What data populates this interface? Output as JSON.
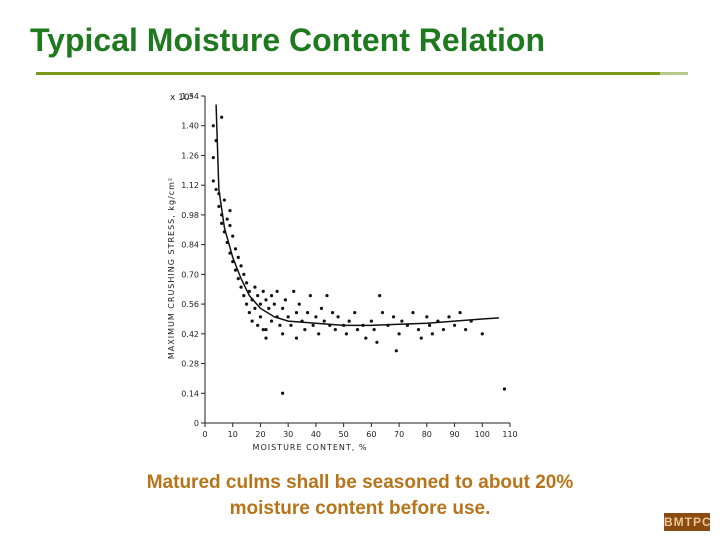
{
  "slide": {
    "title": "Typical Moisture Content Relation",
    "caption_line1": "Matured culms shall be seasoned to about 20%",
    "caption_line2": "moisture content before use.",
    "logo_text": "BMTPC",
    "colors": {
      "title": "#1f7a1f",
      "caption": "#b8741a",
      "rule": "#7a9a1a"
    }
  },
  "chart_data": {
    "type": "scatter",
    "xlabel": "MOISTURE CONTENT, %",
    "ylabel": "MAXIMUM CRUSHING STRESS, kg/cm²",
    "y_multiplier": "x 10³",
    "xlim": [
      0,
      110
    ],
    "ylim": [
      0,
      1.54
    ],
    "x_ticks": [
      "0",
      "10",
      "20",
      "30",
      "40",
      "50",
      "60",
      "70",
      "80",
      "90",
      "100",
      "110"
    ],
    "y_ticks": [
      "0",
      "0.14",
      "0.28",
      "0.42",
      "0.56",
      "0.70",
      "0.84",
      "0.98",
      "1.12",
      "1.26",
      "1.40",
      "1.54"
    ],
    "grid": false,
    "points": [
      [
        3,
        1.4
      ],
      [
        6,
        1.44
      ],
      [
        4,
        1.33
      ],
      [
        3,
        1.25
      ],
      [
        4,
        1.1
      ],
      [
        5,
        1.02
      ],
      [
        6,
        0.98
      ],
      [
        7,
        1.05
      ],
      [
        8,
        0.96
      ],
      [
        7,
        0.9
      ],
      [
        8,
        0.85
      ],
      [
        9,
        0.93
      ],
      [
        10,
        0.88
      ],
      [
        9,
        0.8
      ],
      [
        10,
        0.76
      ],
      [
        11,
        0.82
      ],
      [
        11,
        0.72
      ],
      [
        12,
        0.78
      ],
      [
        12,
        0.68
      ],
      [
        13,
        0.74
      ],
      [
        13,
        0.64
      ],
      [
        14,
        0.7
      ],
      [
        14,
        0.6
      ],
      [
        15,
        0.66
      ],
      [
        15,
        0.56
      ],
      [
        16,
        0.62
      ],
      [
        16,
        0.52
      ],
      [
        17,
        0.58
      ],
      [
        17,
        0.48
      ],
      [
        18,
        0.64
      ],
      [
        18,
        0.54
      ],
      [
        19,
        0.6
      ],
      [
        19,
        0.46
      ],
      [
        20,
        0.56
      ],
      [
        20,
        0.5
      ],
      [
        21,
        0.62
      ],
      [
        21,
        0.44
      ],
      [
        22,
        0.58
      ],
      [
        22,
        0.4
      ],
      [
        23,
        0.54
      ],
      [
        24,
        0.6
      ],
      [
        24,
        0.48
      ],
      [
        25,
        0.56
      ],
      [
        26,
        0.5
      ],
      [
        26,
        0.62
      ],
      [
        27,
        0.46
      ],
      [
        28,
        0.54
      ],
      [
        28,
        0.42
      ],
      [
        29,
        0.58
      ],
      [
        30,
        0.5
      ],
      [
        31,
        0.46
      ],
      [
        32,
        0.62
      ],
      [
        33,
        0.52
      ],
      [
        33,
        0.4
      ],
      [
        34,
        0.56
      ],
      [
        35,
        0.48
      ],
      [
        36,
        0.44
      ],
      [
        37,
        0.52
      ],
      [
        38,
        0.6
      ],
      [
        39,
        0.46
      ],
      [
        40,
        0.5
      ],
      [
        41,
        0.42
      ],
      [
        42,
        0.54
      ],
      [
        43,
        0.48
      ],
      [
        45,
        0.46
      ],
      [
        46,
        0.52
      ],
      [
        47,
        0.44
      ],
      [
        48,
        0.5
      ],
      [
        50,
        0.46
      ],
      [
        51,
        0.42
      ],
      [
        52,
        0.48
      ],
      [
        54,
        0.52
      ],
      [
        55,
        0.44
      ],
      [
        57,
        0.46
      ],
      [
        58,
        0.4
      ],
      [
        60,
        0.48
      ],
      [
        61,
        0.44
      ],
      [
        62,
        0.38
      ],
      [
        63,
        0.6
      ],
      [
        64,
        0.52
      ],
      [
        66,
        0.46
      ],
      [
        68,
        0.5
      ],
      [
        69,
        0.34
      ],
      [
        70,
        0.42
      ],
      [
        71,
        0.48
      ],
      [
        73,
        0.46
      ],
      [
        75,
        0.52
      ],
      [
        77,
        0.44
      ],
      [
        78,
        0.4
      ],
      [
        80,
        0.5
      ],
      [
        81,
        0.46
      ],
      [
        82,
        0.42
      ],
      [
        84,
        0.48
      ],
      [
        86,
        0.44
      ],
      [
        88,
        0.5
      ],
      [
        90,
        0.46
      ],
      [
        92,
        0.52
      ],
      [
        94,
        0.44
      ],
      [
        96,
        0.48
      ],
      [
        100,
        0.42
      ],
      [
        108,
        0.16
      ],
      [
        28,
        0.14
      ],
      [
        22,
        0.44
      ],
      [
        44,
        0.6
      ],
      [
        9,
        1.0
      ],
      [
        5,
        1.08
      ],
      [
        3,
        1.14
      ],
      [
        6,
        0.94
      ]
    ],
    "trend_curve": [
      [
        4,
        1.5
      ],
      [
        5,
        1.1
      ],
      [
        7,
        0.92
      ],
      [
        10,
        0.78
      ],
      [
        13,
        0.68
      ],
      [
        16,
        0.6
      ],
      [
        20,
        0.54
      ],
      [
        25,
        0.5
      ],
      [
        30,
        0.48
      ],
      [
        40,
        0.47
      ],
      [
        50,
        0.46
      ],
      [
        60,
        0.46
      ],
      [
        70,
        0.465
      ],
      [
        80,
        0.47
      ],
      [
        90,
        0.48
      ],
      [
        100,
        0.49
      ],
      [
        106,
        0.495
      ]
    ]
  }
}
